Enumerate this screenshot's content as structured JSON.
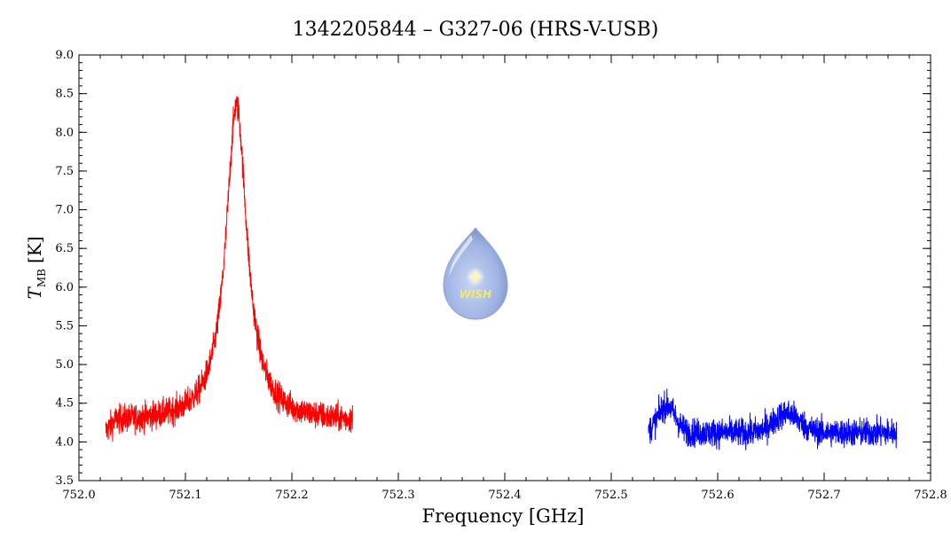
{
  "chart_data": {
    "type": "line",
    "title": "1342205844 – G327-06 (HRS-V-USB)",
    "xlabel": "Frequency [GHz]",
    "ylabel_main": "T",
    "ylabel_sub": "MB",
    "ylabel_unit": "[K]",
    "xlim": [
      752.0,
      752.8
    ],
    "ylim": [
      3.5,
      9.0
    ],
    "x_ticks": [
      "752.0",
      "752.1",
      "752.2",
      "752.3",
      "752.4",
      "752.5",
      "752.6",
      "752.7",
      "752.8"
    ],
    "y_ticks": [
      "3.5",
      "4.0",
      "4.5",
      "5.0",
      "5.5",
      "6.0",
      "6.5",
      "7.0",
      "7.5",
      "8.0",
      "8.5",
      "9.0"
    ],
    "grid": false,
    "series": [
      {
        "color": "#ff0000",
        "x_range": [
          752.025,
          752.257
        ],
        "baseline": 4.25,
        "noise": 0.13,
        "peak_center": 752.148,
        "peak_height": 4.1,
        "peak_width": 0.012
      },
      {
        "color": "#0000ff",
        "x_range": [
          752.535,
          752.768
        ],
        "baseline": 4.12,
        "noise": 0.13,
        "bumps": [
          {
            "center": 752.552,
            "height": 0.35,
            "width": 0.008
          },
          {
            "center": 752.665,
            "height": 0.25,
            "width": 0.012
          }
        ]
      }
    ]
  },
  "logo": {
    "text": "WISH"
  }
}
